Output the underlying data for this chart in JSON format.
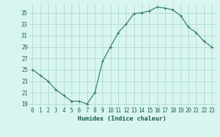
{
  "x": [
    0,
    1,
    2,
    3,
    4,
    5,
    6,
    7,
    8,
    9,
    10,
    11,
    12,
    13,
    14,
    15,
    16,
    17,
    18,
    19,
    20,
    21,
    22,
    23
  ],
  "y": [
    25,
    24,
    23,
    21.5,
    20.5,
    19.5,
    19.5,
    19,
    21,
    26.5,
    29,
    31.5,
    33,
    34.8,
    35,
    35.3,
    36,
    35.8,
    35.5,
    34.5,
    32.5,
    31.5,
    30,
    29
  ],
  "line_color": "#2d7d6e",
  "marker": "+",
  "marker_size": 3,
  "marker_linewidth": 0.8,
  "linewidth": 0.9,
  "bg_color": "#d8f5f0",
  "grid_color": "#aad9d0",
  "xlabel": "Humidex (Indice chaleur)",
  "xlim": [
    -0.5,
    23.5
  ],
  "ylim": [
    18.5,
    36.5
  ],
  "yticks": [
    19,
    21,
    23,
    25,
    27,
    29,
    31,
    33,
    35
  ],
  "xticks": [
    0,
    1,
    2,
    3,
    4,
    5,
    6,
    7,
    8,
    9,
    10,
    11,
    12,
    13,
    14,
    15,
    16,
    17,
    18,
    19,
    20,
    21,
    22,
    23
  ],
  "tick_color": "#1a5c50",
  "label_fontsize": 6.5,
  "tick_fontsize": 5.5
}
